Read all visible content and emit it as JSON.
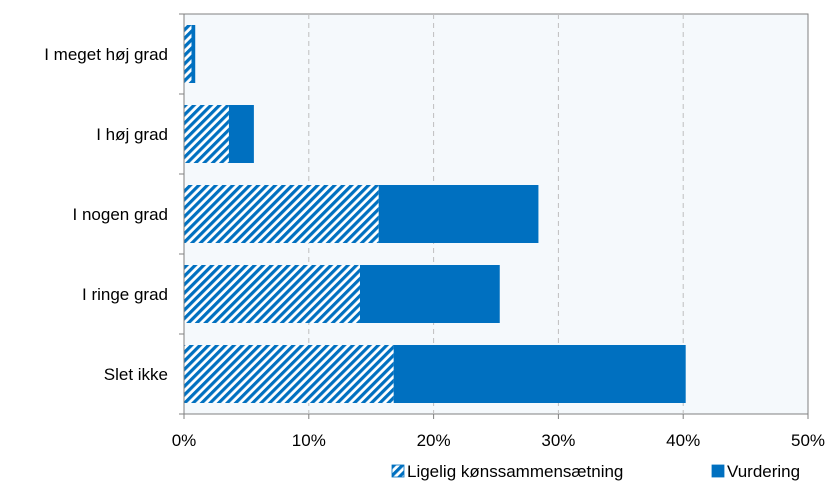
{
  "chart_data": {
    "type": "bar",
    "orientation": "horizontal",
    "stacked": true,
    "categories": [
      "I meget høj grad",
      "I høj grad",
      "I nogen grad",
      "I ringe grad",
      "Slet ikke"
    ],
    "series": [
      {
        "name": "Ligelig kønssammensætning",
        "values": [
          0.6,
          3.6,
          15.6,
          14.1,
          16.8
        ],
        "color": "#0070C0",
        "pattern": "diagonal-hatch"
      },
      {
        "name": "Vurdering",
        "values": [
          0.3,
          2.0,
          12.8,
          11.2,
          23.4
        ],
        "color": "#0070C0",
        "pattern": "solid"
      }
    ],
    "xlim": [
      0,
      50
    ],
    "xticks": [
      "0%",
      "10%",
      "20%",
      "30%",
      "40%",
      "50%"
    ],
    "xtick_values": [
      0,
      10,
      20,
      30,
      40,
      50
    ],
    "grid": "vertical-dashed",
    "legend": "bottom-right",
    "colors": {
      "plot_background": "#F5F9FC",
      "grid": "#BFBFBF",
      "axis": "#808080",
      "bar": "#0070C0"
    }
  }
}
